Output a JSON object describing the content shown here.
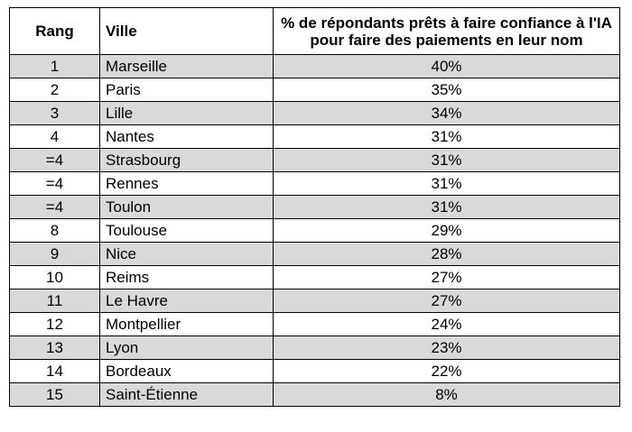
{
  "table": {
    "headers": {
      "rang": "Rang",
      "ville": "Ville",
      "pct_line1": "% de répondants prêts à faire confiance à l'IA",
      "pct_line2": "pour faire des paiements en leur nom"
    },
    "row_shading": {
      "shaded": "#d9d9d9",
      "plain": "#ffffff"
    },
    "rows": [
      {
        "rang": "1",
        "ville": "Marseille",
        "pct": "40%"
      },
      {
        "rang": "2",
        "ville": "Paris",
        "pct": "35%"
      },
      {
        "rang": "3",
        "ville": "Lille",
        "pct": "34%"
      },
      {
        "rang": "4",
        "ville": "Nantes",
        "pct": "31%"
      },
      {
        "rang": "=4",
        "ville": "Strasbourg",
        "pct": "31%"
      },
      {
        "rang": "=4",
        "ville": "Rennes",
        "pct": "31%"
      },
      {
        "rang": "=4",
        "ville": "Toulon",
        "pct": "31%"
      },
      {
        "rang": "8",
        "ville": "Toulouse",
        "pct": "29%"
      },
      {
        "rang": "9",
        "ville": "Nice",
        "pct": "28%"
      },
      {
        "rang": "10",
        "ville": "Reims",
        "pct": "27%"
      },
      {
        "rang": "11",
        "ville": "Le Havre",
        "pct": "27%"
      },
      {
        "rang": "12",
        "ville": "Montpellier",
        "pct": "24%"
      },
      {
        "rang": "13",
        "ville": "Lyon",
        "pct": "23%"
      },
      {
        "rang": "14",
        "ville": "Bordeaux",
        "pct": "22%"
      },
      {
        "rang": "15",
        "ville": "Saint-Étienne",
        "pct": "8%"
      }
    ]
  }
}
